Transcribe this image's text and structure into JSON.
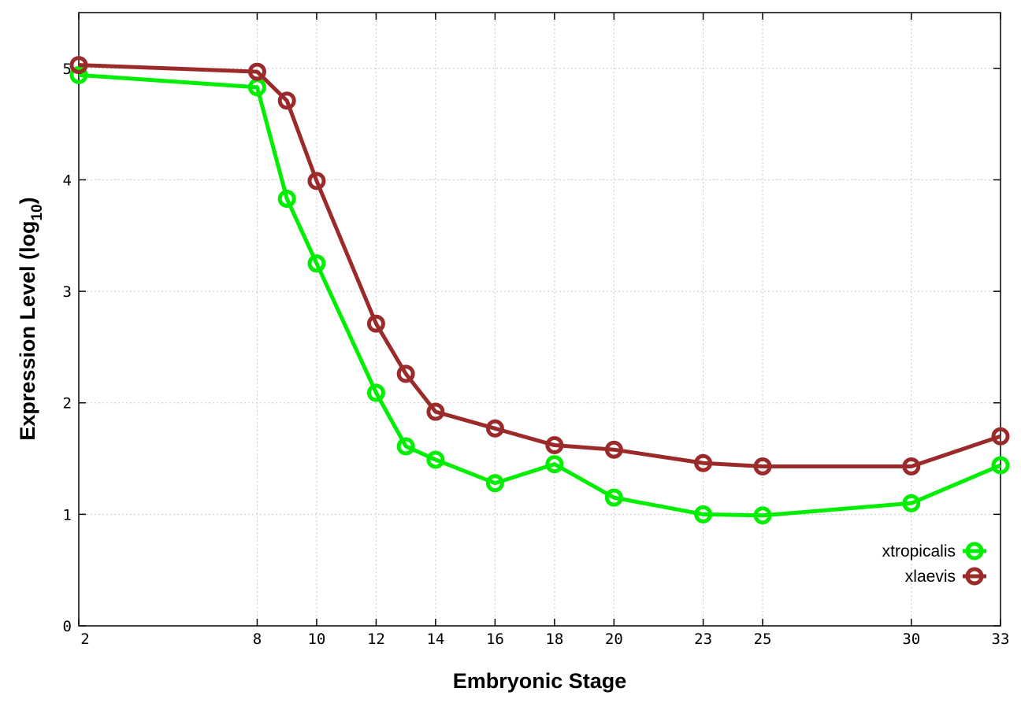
{
  "chart_data": {
    "type": "line",
    "xlabel": "Embryonic Stage",
    "ylabel_main": "Expression Level (log",
    "ylabel_sub": "10",
    "ylabel_close": ")",
    "x_ticks": [
      "2",
      "8",
      "10",
      "12",
      "14",
      "16",
      "18",
      "20",
      "23",
      "25",
      "30",
      "33"
    ],
    "y_ticks": [
      "0",
      "1",
      "2",
      "3",
      "4",
      "5"
    ],
    "ylim": [
      0,
      5.5
    ],
    "grid": true,
    "legend_position": "right",
    "series": [
      {
        "name": "xtropicalis",
        "color": "#00ee00",
        "points": [
          {
            "x": "2",
            "y": 4.94
          },
          {
            "x": "8",
            "y": 4.83
          },
          {
            "x": "9",
            "y": 3.83
          },
          {
            "x": "10",
            "y": 3.25
          },
          {
            "x": "12",
            "y": 2.09
          },
          {
            "x": "13",
            "y": 1.61
          },
          {
            "x": "14",
            "y": 1.49
          },
          {
            "x": "16",
            "y": 1.28
          },
          {
            "x": "18",
            "y": 1.45
          },
          {
            "x": "20",
            "y": 1.15
          },
          {
            "x": "23",
            "y": 1.0
          },
          {
            "x": "25",
            "y": 0.99
          },
          {
            "x": "30",
            "y": 1.1
          },
          {
            "x": "33",
            "y": 1.44
          }
        ]
      },
      {
        "name": "xlaevis",
        "color": "#9b2b2b",
        "points": [
          {
            "x": "2",
            "y": 5.03
          },
          {
            "x": "8",
            "y": 4.97
          },
          {
            "x": "9",
            "y": 4.71
          },
          {
            "x": "10",
            "y": 3.99
          },
          {
            "x": "12",
            "y": 2.71
          },
          {
            "x": "13",
            "y": 2.26
          },
          {
            "x": "14",
            "y": 1.92
          },
          {
            "x": "16",
            "y": 1.77
          },
          {
            "x": "18",
            "y": 1.62
          },
          {
            "x": "20",
            "y": 1.58
          },
          {
            "x": "23",
            "y": 1.46
          },
          {
            "x": "25",
            "y": 1.43
          },
          {
            "x": "30",
            "y": 1.43
          },
          {
            "x": "33",
            "y": 1.7
          }
        ]
      }
    ]
  }
}
